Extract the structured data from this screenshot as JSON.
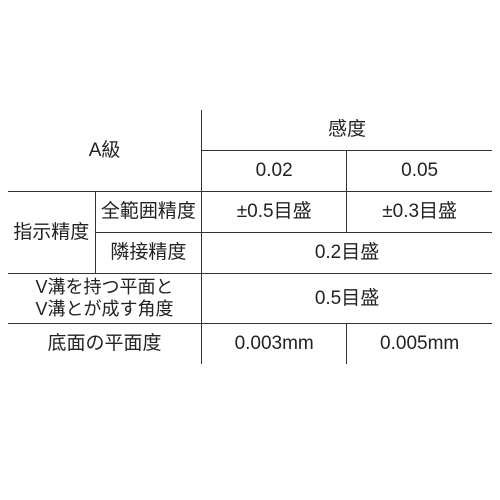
{
  "table": {
    "grade_label": "A級",
    "sensitivity_label": "感度",
    "sensitivity_cols": [
      "0.02",
      "0.05"
    ],
    "indication_accuracy_label": "指示精度",
    "full_range_label": "全範囲精度",
    "full_range_values": [
      "±0.5目盛",
      "±0.3目盛"
    ],
    "adjacent_label": "隣接精度",
    "adjacent_value": "0.2目盛",
    "vgroove_line1": "V溝を持つ平面と",
    "vgroove_line2": "V溝とが成す角度",
    "vgroove_value": "0.5目盛",
    "flatness_label": "底面の平面度",
    "flatness_values": [
      "0.003mm",
      "0.005mm"
    ],
    "colors": {
      "border": "#333333",
      "text": "#222222",
      "background": "#ffffff"
    },
    "font_size_pt": 19
  }
}
